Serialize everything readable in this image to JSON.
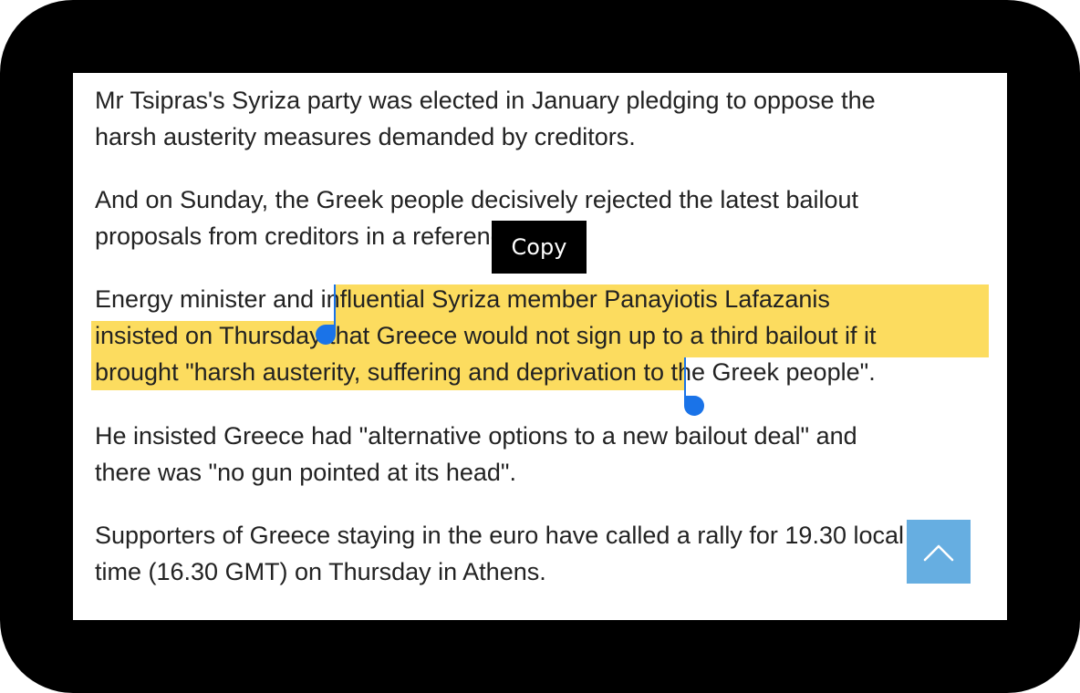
{
  "article": {
    "paragraphs": [
      {
        "lines": [
          "Mr Tsipras's Syriza party was elected in January pledging to oppose the",
          "harsh austerity measures demanded by creditors."
        ]
      },
      {
        "lines": [
          "And on Sunday, the Greek people decisively rejected the latest bailout",
          "proposals from creditors in a referendum."
        ]
      },
      {
        "lines": [
          "Energy minister and influential Syriza member Panayiotis Lafazanis",
          "insisted on Thursday that Greece would not sign up to a third bailout if it",
          "brought \"harsh austerity, suffering and deprivation to the Greek people\"."
        ]
      },
      {
        "lines": [
          "He insisted Greece had \"alternative options to a new bailout deal\" and",
          "there was \"no gun pointed at its head\"."
        ]
      },
      {
        "lines": [
          "Supporters of Greece staying in the euro have called a rally for 19.30 local",
          "time (16.30 GMT) on Thursday in Athens."
        ]
      }
    ]
  },
  "selection": {
    "highlight_color": "#fcdc5f",
    "handle_color": "#1a73e8"
  },
  "context_menu": {
    "copy_label": "Copy"
  },
  "scroll_to_top": {
    "icon": "chevron-up-icon",
    "color": "#4ba0dc"
  }
}
